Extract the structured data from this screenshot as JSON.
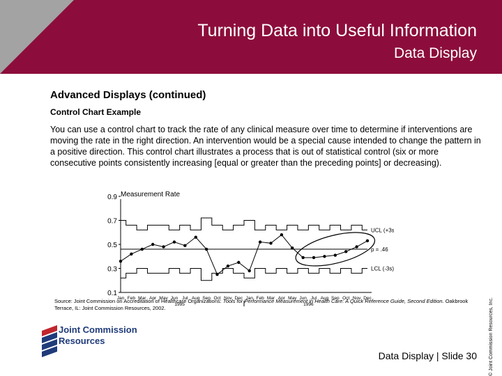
{
  "header": {
    "title": "Turning Data into Useful Information",
    "subtitle": "Data Display"
  },
  "content": {
    "heading": "Advanced Displays (continued)",
    "subheading": "Control Chart Example",
    "paragraph": "You can use a control chart to track the rate of any clinical measure over time to determine if interventions are moving the rate in the right direction. An intervention would be a special cause intended to change the pattern in a positive direction. This control chart illustrates a process that is out of statistical control (six or more consecutive points consistently increasing [equal or greater than the preceding points] or decreasing)."
  },
  "source": {
    "prefix": "Source: Joint Commission on Accreditation of Healthcare Organizations: ",
    "italic": "Tools for Performance Measurement in Health Care: A Quick Reference Guide, Second Edition",
    "suffix": ". Oakbrook Terrace, IL: Joint Commission Resources, 2002."
  },
  "footer": {
    "slide_label": "Data Display | Slide 30",
    "copyright": "© Joint Commission Resources, Inc."
  },
  "logo": {
    "line1": "Joint Commission",
    "line2": "Resources"
  },
  "colors": {
    "header_bg": "#8c0d3b",
    "header_triangle": "#a3a3a3",
    "logo_navy": "#1f3b7a",
    "logo_red": "#c0272d"
  },
  "chart_data": {
    "type": "line",
    "title": "Measurement Rate",
    "categories": [
      "Jan",
      "Feb",
      "Mar",
      "Apr",
      "May",
      "Jun",
      "Jul",
      "Aug",
      "Sep",
      "Oct",
      "Nov",
      "Dec",
      "Jan",
      "Feb",
      "Mar",
      "Apr",
      "May",
      "Jun",
      "Jul",
      "Aug",
      "Sep",
      "Oct",
      "Nov",
      "Dec"
    ],
    "year_labels": [
      "1995",
      "1996"
    ],
    "ylim": [
      0.1,
      0.9
    ],
    "yticks": [
      "0.9",
      "0.7",
      "0.5",
      "0.3",
      "0.1"
    ],
    "ytick_values": [
      0.9,
      0.7,
      0.5,
      0.3,
      0.1
    ],
    "series": [
      {
        "values": [
          0.36,
          0.42,
          0.46,
          0.5,
          0.48,
          0.52,
          0.49,
          0.56,
          0.46,
          0.25,
          0.32,
          0.35,
          0.28,
          0.52,
          0.51,
          0.58,
          0.47,
          0.39,
          0.39,
          0.4,
          0.41,
          0.44,
          0.48,
          0.53
        ]
      }
    ],
    "ucl": [
      0.7,
      0.66,
      0.62,
      0.66,
      0.66,
      0.62,
      0.66,
      0.62,
      0.72,
      0.66,
      0.62,
      0.66,
      0.7,
      0.62,
      0.66,
      0.62,
      0.66,
      0.62,
      0.66,
      0.62,
      0.66,
      0.62,
      0.66,
      0.62
    ],
    "lcl": [
      0.22,
      0.26,
      0.3,
      0.26,
      0.26,
      0.3,
      0.26,
      0.3,
      0.2,
      0.26,
      0.3,
      0.26,
      0.22,
      0.3,
      0.26,
      0.3,
      0.26,
      0.3,
      0.26,
      0.3,
      0.26,
      0.3,
      0.26,
      0.3
    ],
    "center": 0.46,
    "labels": {
      "ucl": "UCL (+3s)",
      "center": "p = .46",
      "lcl": "LCL (-3s)"
    },
    "highlight_range": [
      17,
      23
    ]
  }
}
